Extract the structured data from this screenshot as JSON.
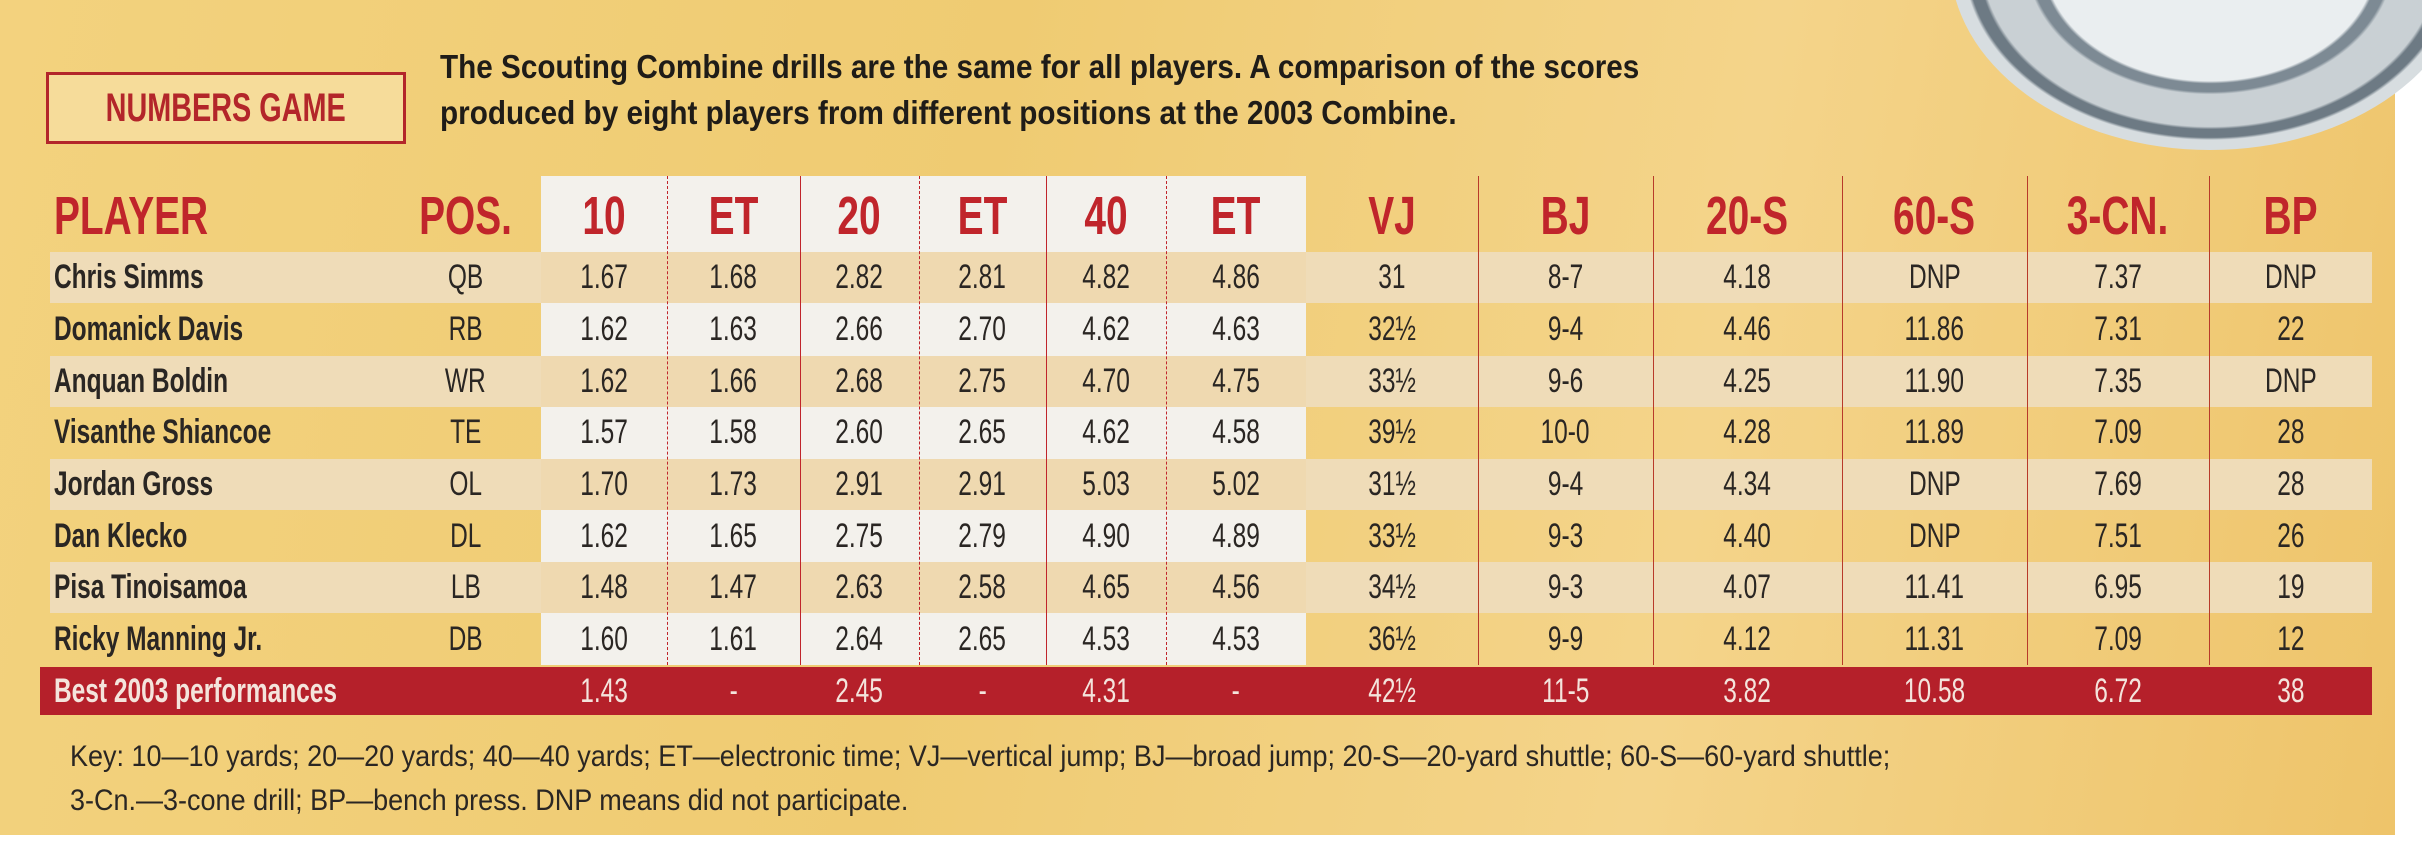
{
  "header": {
    "title": "NUMBERS GAME",
    "description_lines": [
      "The Scouting Combine drills are the same for all players. A comparison of the scores",
      "produced by eight players from different positions at the 2003 Combine."
    ]
  },
  "colors": {
    "accent_red": "#b3262a",
    "background_gold": "#f0cd78",
    "best_row": "#b5202a"
  },
  "table": {
    "columns": [
      "PLAYER",
      "POS.",
      "10",
      "ET",
      "20",
      "ET",
      "40",
      "ET",
      "VJ",
      "BJ",
      "20-S",
      "60-S",
      "3-CN.",
      "BP"
    ],
    "rows": [
      [
        "Chris Simms",
        "QB",
        "1.67",
        "1.68",
        "2.82",
        "2.81",
        "4.82",
        "4.86",
        "31",
        "8-7",
        "4.18",
        "DNP",
        "7.37",
        "DNP"
      ],
      [
        "Domanick Davis",
        "RB",
        "1.62",
        "1.63",
        "2.66",
        "2.70",
        "4.62",
        "4.63",
        "32½",
        "9-4",
        "4.46",
        "11.86",
        "7.31",
        "22"
      ],
      [
        "Anquan Boldin",
        "WR",
        "1.62",
        "1.66",
        "2.68",
        "2.75",
        "4.70",
        "4.75",
        "33½",
        "9-6",
        "4.25",
        "11.90",
        "7.35",
        "DNP"
      ],
      [
        "Visanthe Shiancoe",
        "TE",
        "1.57",
        "1.58",
        "2.60",
        "2.65",
        "4.62",
        "4.58",
        "39½",
        "10-0",
        "4.28",
        "11.89",
        "7.09",
        "28"
      ],
      [
        "Jordan Gross",
        "OL",
        "1.70",
        "1.73",
        "2.91",
        "2.91",
        "5.03",
        "5.02",
        "31½",
        "9-4",
        "4.34",
        "DNP",
        "7.69",
        "28"
      ],
      [
        "Dan Klecko",
        "DL",
        "1.62",
        "1.65",
        "2.75",
        "2.79",
        "4.90",
        "4.89",
        "33½",
        "9-3",
        "4.40",
        "DNP",
        "7.51",
        "26"
      ],
      [
        "Pisa Tinoisamoa",
        "LB",
        "1.48",
        "1.47",
        "2.63",
        "2.58",
        "4.65",
        "4.56",
        "34½",
        "9-3",
        "4.07",
        "11.41",
        "6.95",
        "19"
      ],
      [
        "Ricky Manning Jr.",
        "DB",
        "1.60",
        "1.61",
        "2.64",
        "2.65",
        "4.53",
        "4.53",
        "36½",
        "9-9",
        "4.12",
        "11.31",
        "7.09",
        "12"
      ]
    ],
    "best": [
      "Best 2003 performances",
      "",
      "1.43",
      "-",
      "2.45",
      "-",
      "4.31",
      "-",
      "42½",
      "11-5",
      "3.82",
      "10.58",
      "6.72",
      "38"
    ]
  },
  "key_lines": [
    "Key: 10—10 yards; 20—20 yards; 40—40 yards; ET—electronic time; VJ—vertical jump; BJ—broad jump; 20-S—20-yard shuttle; 60-S—60-yard shuttle;",
    "3-Cn.—3-cone drill; BP—bench press. DNP means did not participate."
  ]
}
